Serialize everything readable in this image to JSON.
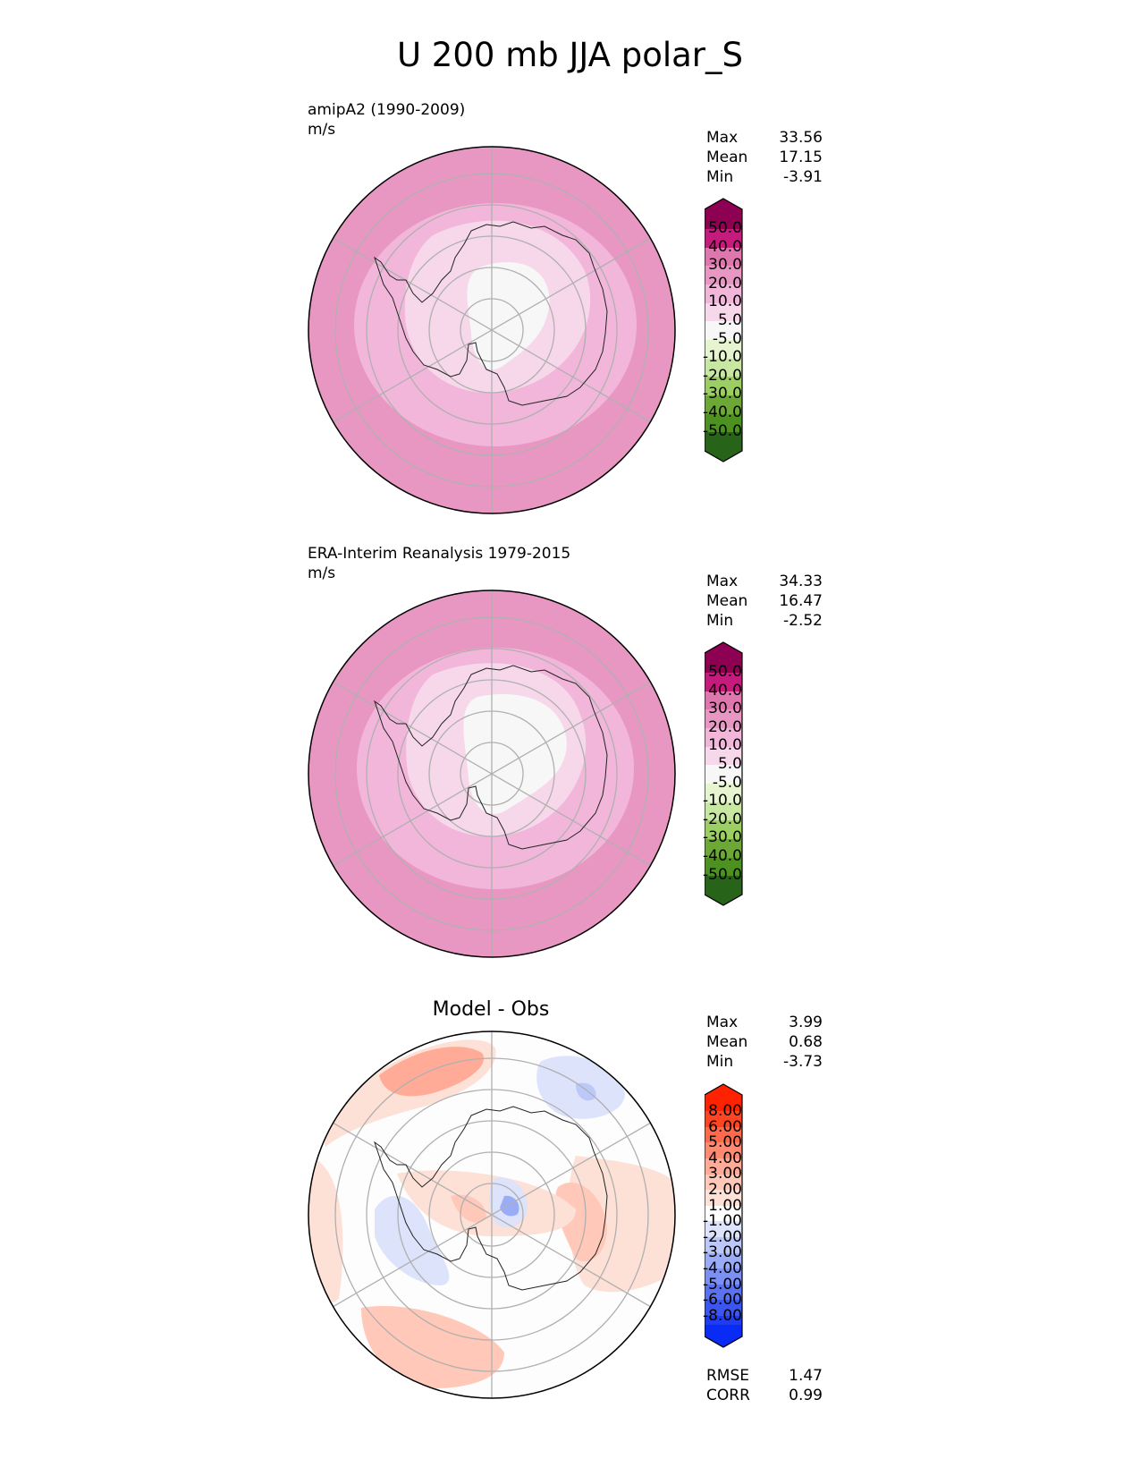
{
  "title": "U 200 mb JJA polar_S",
  "panels": [
    {
      "caption": "amipA2 (1990-2009)",
      "units": "m/s",
      "stats": {
        "max_label": "Max",
        "max": "33.56",
        "mean_label": "Mean",
        "mean": "17.15",
        "min_label": "Min",
        "min": "-3.91"
      },
      "colorbar_labels": [
        "50.0",
        "40.0",
        "30.0",
        "20.0",
        "10.0",
        "5.0",
        "-5.0",
        "-10.0",
        "-20.0",
        "-30.0",
        "-40.0",
        "-50.0"
      ]
    },
    {
      "caption": "ERA-Interim Reanalysis 1979-2015",
      "units": "m/s",
      "stats": {
        "max_label": "Max",
        "max": "34.33",
        "mean_label": "Mean",
        "mean": "16.47",
        "min_label": "Min",
        "min": "-2.52"
      },
      "colorbar_labels": [
        "50.0",
        "40.0",
        "30.0",
        "20.0",
        "10.0",
        "5.0",
        "-5.0",
        "-10.0",
        "-20.0",
        "-30.0",
        "-40.0",
        "-50.0"
      ]
    },
    {
      "caption": "Model - Obs",
      "stats": {
        "max_label": "Max",
        "max": "3.99",
        "mean_label": "Mean",
        "mean": "0.68",
        "min_label": "Min",
        "min": "-3.73"
      },
      "colorbar_labels": [
        "8.00",
        "6.00",
        "5.00",
        "4.00",
        "3.00",
        "2.00",
        "1.00",
        "-1.00",
        "-2.00",
        "-3.00",
        "-4.00",
        "-5.00",
        "-6.00",
        "-8.00"
      ],
      "rmse_label": "RMSE",
      "rmse": "1.47",
      "corr_label": "CORR",
      "corr": "0.99"
    }
  ],
  "colors": {
    "field_scale": [
      "#8e0152",
      "#c51b7d",
      "#de77ae",
      "#e897c3",
      "#f1b6da",
      "#f7d8ea",
      "#f7f7f7",
      "#e6f5d0",
      "#b8e186",
      "#9ccf63",
      "#7fbc41",
      "#5d9e2e",
      "#4d9221",
      "#276419"
    ],
    "diff_scale": [
      "#ff2200",
      "#ff4422",
      "#ff6a4d",
      "#ff8a72",
      "#ffab98",
      "#ffc8b8",
      "#fde0d6",
      "#ffffff",
      "#dce3fb",
      "#bcc8f8",
      "#9aacf6",
      "#7c90f3",
      "#5a72f1",
      "#3a55f0",
      "#1f3cf0",
      "#0a2af6"
    ]
  }
}
